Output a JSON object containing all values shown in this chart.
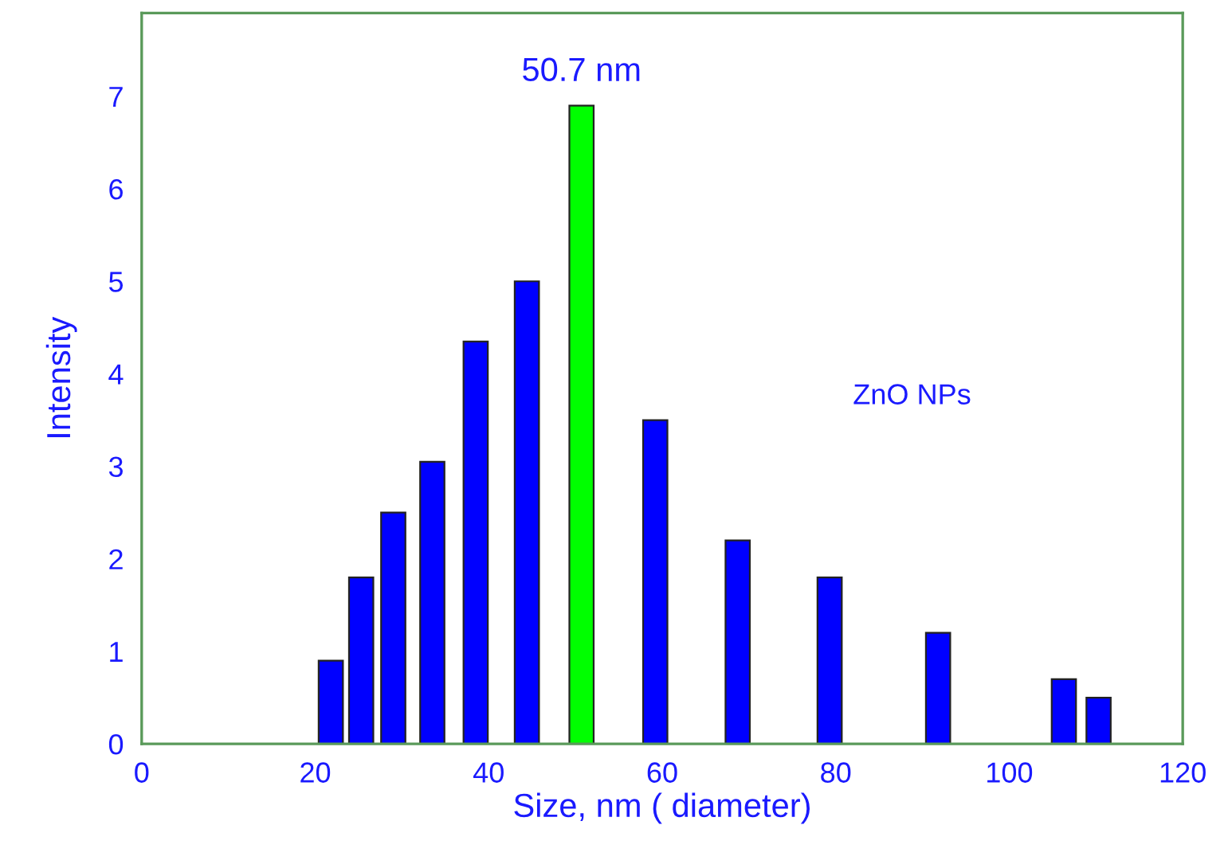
{
  "chart_data": {
    "type": "bar",
    "xlabel": "Size, nm ( diameter)",
    "ylabel": "Intensity",
    "x": [
      21.8,
      25.3,
      29.0,
      33.5,
      38.5,
      44.4,
      50.7,
      59.2,
      68.7,
      79.3,
      91.8,
      106.3,
      110.3
    ],
    "values": [
      0.9,
      1.8,
      2.5,
      3.05,
      4.35,
      5.0,
      6.9,
      3.5,
      2.2,
      1.8,
      1.2,
      0.7,
      0.5
    ],
    "colors": [
      "#0000ff",
      "#0000ff",
      "#0000ff",
      "#0000ff",
      "#0000ff",
      "#0000ff",
      "#00ff00",
      "#0000ff",
      "#0000ff",
      "#0000ff",
      "#0000ff",
      "#0000ff",
      "#0000ff"
    ],
    "xlim": [
      0,
      120
    ],
    "xticks": [
      0,
      20,
      40,
      60,
      80,
      100,
      120
    ],
    "ylim": [
      0,
      7.9
    ],
    "yticks": [
      0,
      1,
      2,
      3,
      4,
      5,
      6,
      7
    ],
    "annotations": [
      {
        "text": "50.7 nm",
        "x": 50.7,
        "y": 6.9
      },
      "ZnO NPs"
    ],
    "grid": false,
    "legend": false
  }
}
